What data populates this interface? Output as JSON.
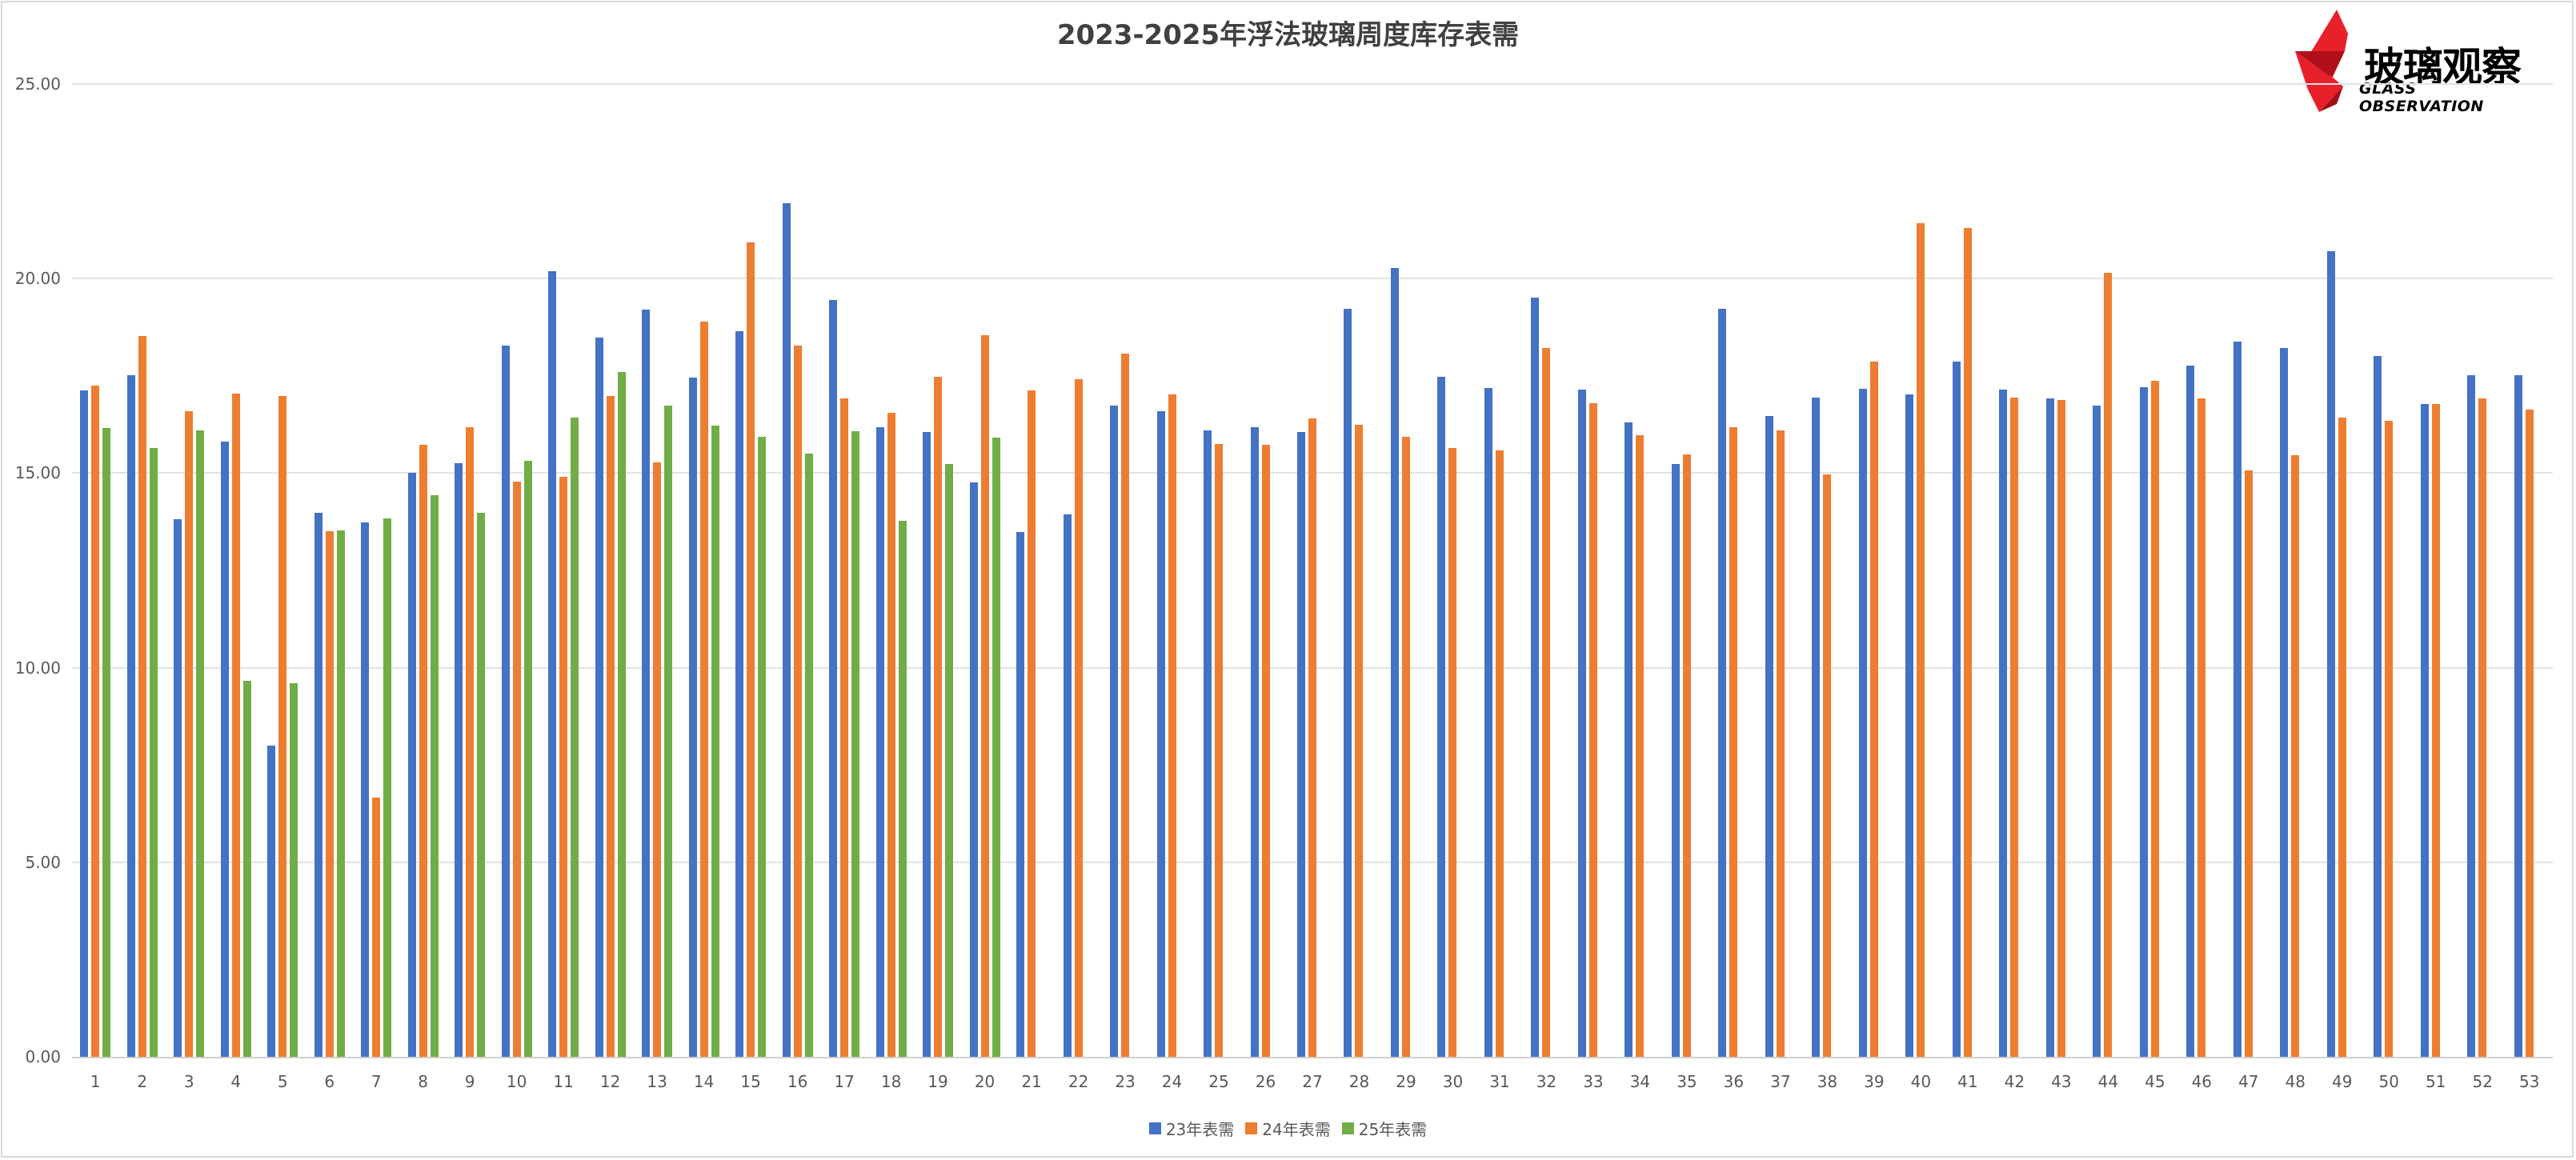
{
  "title": "2023-2025年浮法玻璃周度库存表需",
  "logo": {
    "cn": "玻璃观察",
    "en": "GLASS OBSERVATION"
  },
  "legend": [
    {
      "label": "23年表需",
      "color": "#4472C4"
    },
    {
      "label": "24年表需",
      "color": "#ED7D31"
    },
    {
      "label": "25年表需",
      "color": "#70AD47"
    }
  ],
  "y_ticks": [
    "25.00",
    "20.00",
    "15.00",
    "10.00",
    "5.00",
    "0.00"
  ],
  "chart_data": {
    "type": "bar",
    "title": "2023-2025年浮法玻璃周度库存表需",
    "xlabel": "",
    "ylabel": "",
    "ylim": [
      0,
      25
    ],
    "y_tick_step": 5,
    "grid": true,
    "legend_position": "bottom",
    "categories": [
      "1",
      "2",
      "3",
      "4",
      "5",
      "6",
      "7",
      "8",
      "9",
      "10",
      "11",
      "12",
      "13",
      "14",
      "15",
      "16",
      "17",
      "18",
      "19",
      "20",
      "21",
      "22",
      "23",
      "24",
      "25",
      "26",
      "27",
      "28",
      "29",
      "30",
      "31",
      "32",
      "33",
      "34",
      "35",
      "36",
      "37",
      "38",
      "39",
      "40",
      "41",
      "42",
      "43",
      "44",
      "45",
      "46",
      "47",
      "48",
      "49",
      "50",
      "51",
      "52",
      "53"
    ],
    "series": [
      {
        "name": "23年表需",
        "color": "#4472C4",
        "values": [
          17.12,
          17.51,
          13.81,
          15.82,
          8.0,
          13.97,
          13.74,
          15.0,
          15.25,
          18.27,
          20.19,
          18.48,
          19.2,
          17.45,
          18.64,
          21.93,
          19.44,
          16.17,
          16.05,
          14.77,
          13.48,
          13.93,
          16.73,
          16.6,
          16.09,
          16.19,
          16.05,
          19.22,
          20.27,
          17.47,
          17.18,
          19.51,
          17.14,
          16.3,
          15.23,
          19.22,
          16.46,
          16.95,
          17.16,
          17.02,
          17.86,
          17.14,
          16.91,
          16.73,
          17.2,
          17.76,
          18.37,
          18.21,
          20.7,
          18.02,
          16.77,
          17.51,
          17.51
        ]
      },
      {
        "name": "24年表需",
        "color": "#ED7D31",
        "values": [
          17.24,
          18.52,
          16.6,
          17.04,
          16.98,
          13.5,
          6.67,
          15.72,
          16.17,
          14.79,
          14.9,
          16.98,
          15.27,
          18.89,
          20.93,
          18.27,
          16.91,
          16.56,
          17.47,
          18.54,
          17.12,
          17.41,
          18.07,
          17.02,
          15.74,
          15.72,
          16.4,
          16.25,
          15.93,
          15.64,
          15.58,
          18.21,
          16.79,
          15.97,
          15.49,
          16.17,
          16.09,
          14.97,
          17.86,
          21.42,
          21.3,
          16.95,
          16.87,
          20.14,
          17.37,
          16.93,
          15.06,
          15.47,
          16.42,
          16.34,
          16.77,
          16.93,
          16.63
        ]
      },
      {
        "name": "25年表需",
        "color": "#70AD47",
        "values": [
          16.15,
          15.64,
          16.09,
          9.67,
          9.61,
          13.52,
          13.83,
          14.44,
          13.97,
          15.31,
          16.42,
          17.59,
          16.73,
          16.23,
          15.93,
          15.51,
          16.07,
          13.77,
          15.23,
          15.91,
          null,
          null,
          null,
          null,
          null,
          null,
          null,
          null,
          null,
          null,
          null,
          null,
          null,
          null,
          null,
          null,
          null,
          null,
          null,
          null,
          null,
          null,
          null,
          null,
          null,
          null,
          null,
          null,
          null,
          null,
          null,
          null,
          null
        ]
      }
    ]
  }
}
